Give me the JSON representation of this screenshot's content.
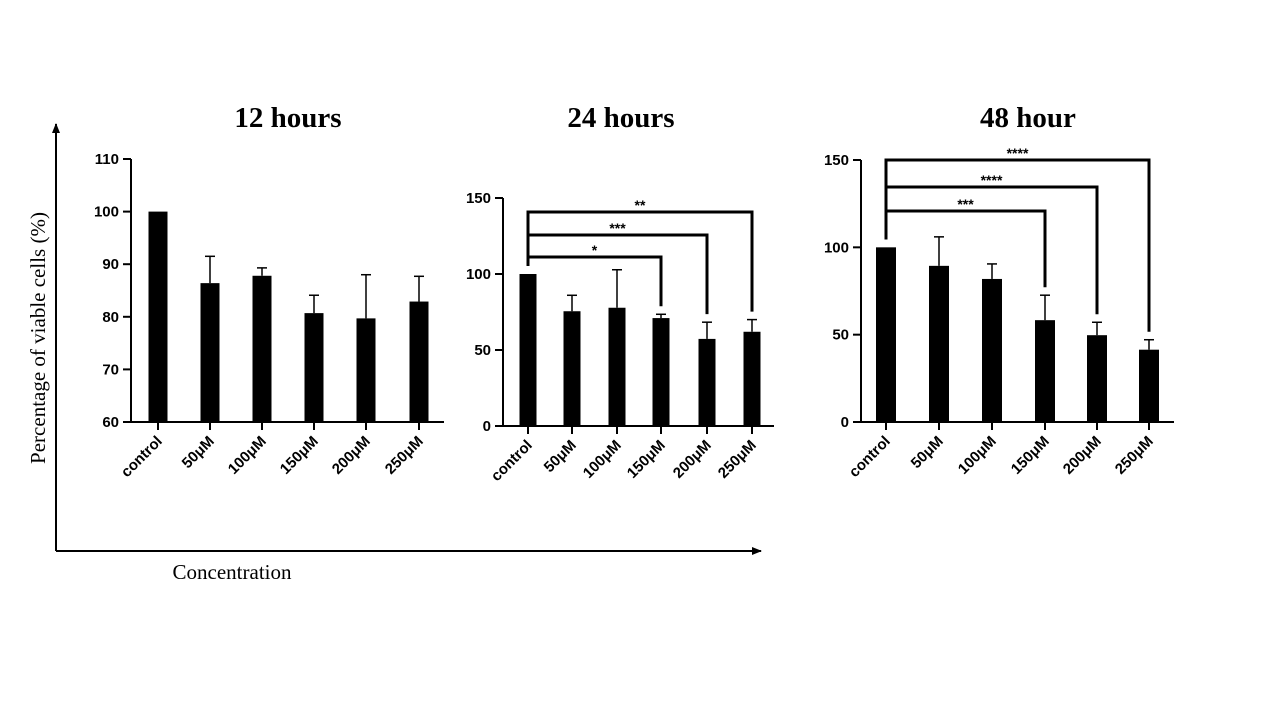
{
  "figure": {
    "ylabel": "Percentage of viable cells (%)",
    "xlabel": "Concentration"
  },
  "chart_data": [
    {
      "type": "bar",
      "title": "12 hours",
      "categories": [
        "control",
        "50μM",
        "100μM",
        "150μM",
        "200μM",
        "250μM"
      ],
      "values": [
        100,
        86.4,
        87.8,
        80.7,
        79.7,
        82.9
      ],
      "errors": [
        0,
        5.1,
        1.5,
        3.4,
        8.3,
        4.8
      ],
      "ylim": [
        60,
        110
      ],
      "yticks": [
        60,
        70,
        80,
        90,
        100,
        110
      ],
      "significance": []
    },
    {
      "type": "bar",
      "title": "24 hours",
      "categories": [
        "control",
        "50μM",
        "100μM",
        "150μM",
        "200μM",
        "250μM"
      ],
      "values": [
        100,
        75.5,
        77.8,
        71,
        57.3,
        62
      ],
      "errors": [
        0,
        10.5,
        25,
        2.5,
        11,
        8
      ],
      "ylim": [
        0,
        150
      ],
      "yticks": [
        0,
        50,
        100,
        150
      ],
      "significance": [
        {
          "from": 0,
          "to": 3,
          "label": "*"
        },
        {
          "from": 0,
          "to": 4,
          "label": "***"
        },
        {
          "from": 0,
          "to": 5,
          "label": "**"
        }
      ]
    },
    {
      "type": "bar",
      "title": "48 hour",
      "categories": [
        "control",
        "50μM",
        "100μM",
        "150μM",
        "200μM",
        "250μM"
      ],
      "values": [
        100,
        89.4,
        81.9,
        58.3,
        49.7,
        41.4
      ],
      "errors": [
        0,
        16.6,
        8.6,
        14.3,
        7.4,
        5.7
      ],
      "ylim": [
        0,
        150
      ],
      "yticks": [
        0,
        50,
        100,
        150
      ],
      "significance": [
        {
          "from": 0,
          "to": 3,
          "label": "***"
        },
        {
          "from": 0,
          "to": 4,
          "label": "****"
        },
        {
          "from": 0,
          "to": 5,
          "label": "****"
        }
      ]
    }
  ]
}
